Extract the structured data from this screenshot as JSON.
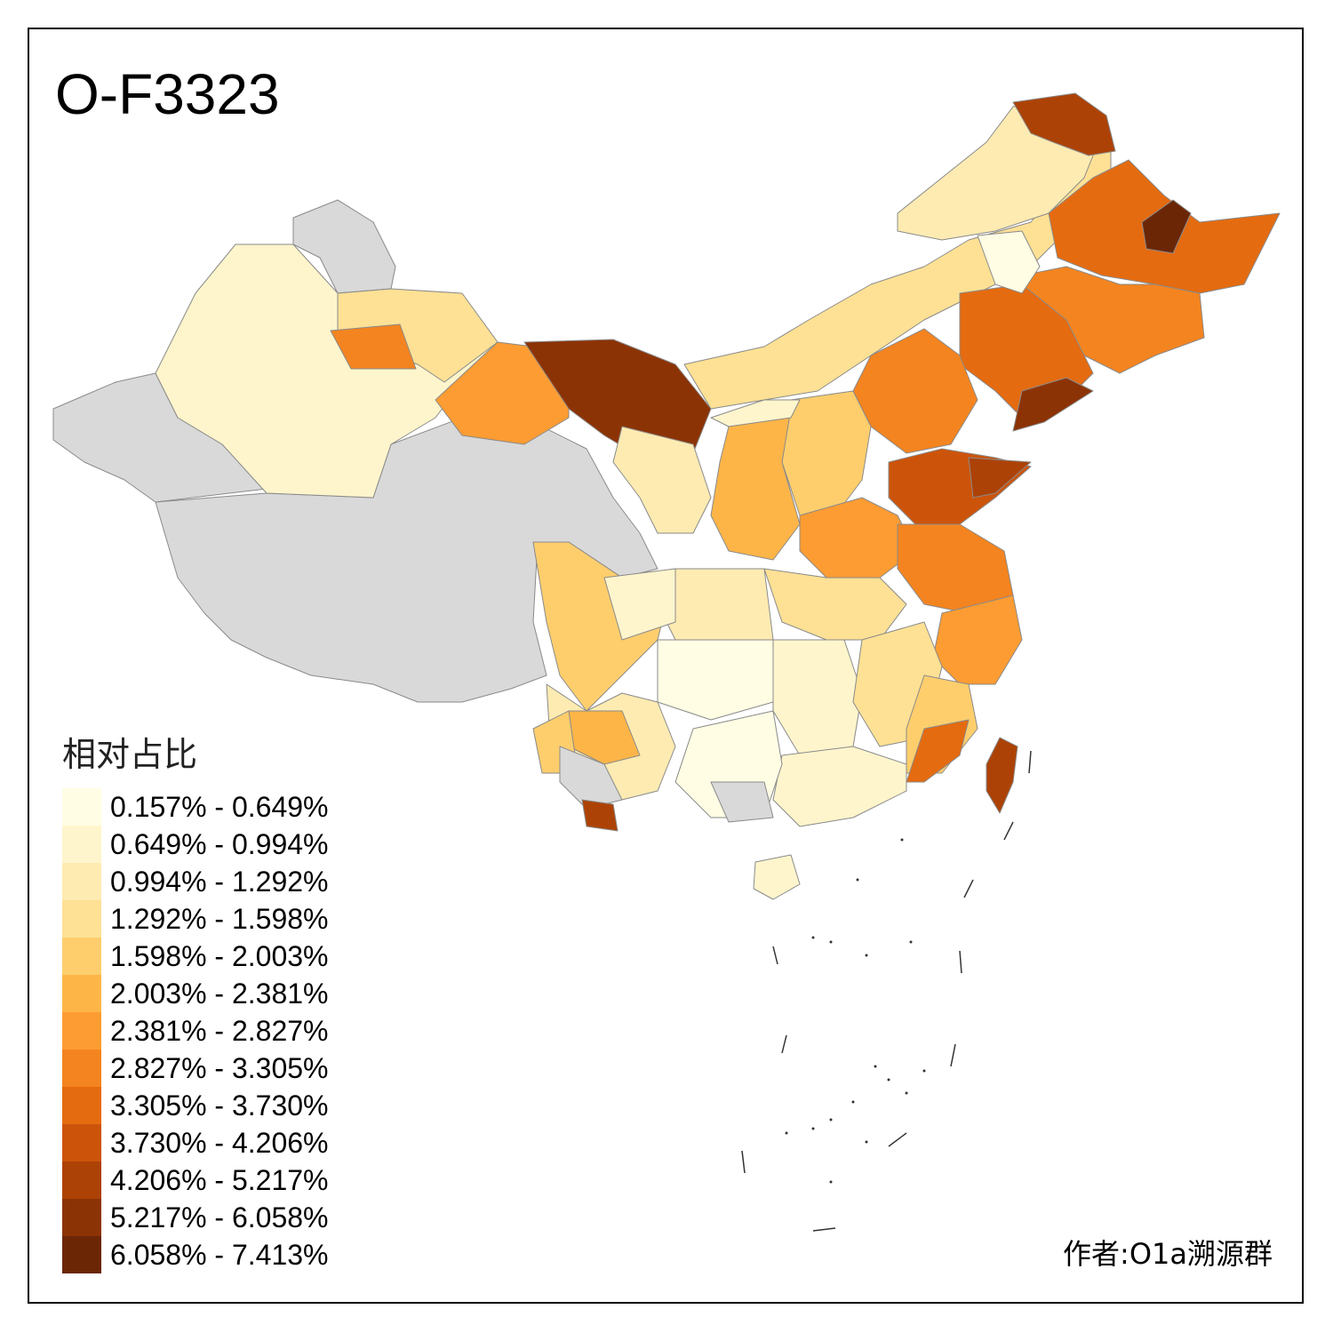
{
  "title": "O-F3323",
  "legend": {
    "title": "相对占比",
    "items": [
      {
        "label": "0.157% - 0.649%",
        "color": "#fffde4"
      },
      {
        "label": "0.649% - 0.994%",
        "color": "#fff5cc"
      },
      {
        "label": "0.994% - 1.292%",
        "color": "#feebb2"
      },
      {
        "label": "1.292% - 1.598%",
        "color": "#fee195"
      },
      {
        "label": "1.598% - 2.003%",
        "color": "#fece6d"
      },
      {
        "label": "2.003% - 2.381%",
        "color": "#feb548"
      },
      {
        "label": "2.381% - 2.827%",
        "color": "#fd9c32"
      },
      {
        "label": "2.827% - 3.305%",
        "color": "#f4841f"
      },
      {
        "label": "3.305% - 3.730%",
        "color": "#e56b10"
      },
      {
        "label": "3.730% - 4.206%",
        "color": "#cc540a"
      },
      {
        "label": "4.206% - 5.217%",
        "color": "#ad4206"
      },
      {
        "label": "5.217% - 6.058%",
        "color": "#8c3306"
      },
      {
        "label": "6.058% - 7.413%",
        "color": "#6b2606"
      }
    ]
  },
  "no_data_color": "#d9d9d9",
  "author": "作者:O1a溯源群"
}
